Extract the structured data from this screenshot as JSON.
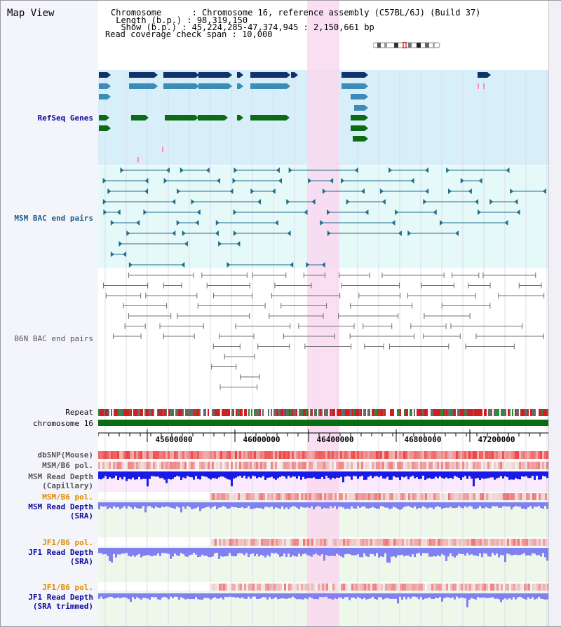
{
  "page_title": "Map View",
  "header": {
    "chromosome_key": "Chromosome      ",
    "chromosome_value": "Chromosome 16, reference assembly (C57BL/6J) (Build 37)",
    "length_key": " Length (b.p.) ",
    "length_value": "98,319,150",
    "show_key": "  Show (b.p.) ",
    "show_value": "45,224,285-47,374,945 : 2,150,661 bp",
    "span_key": "Read coverage check span",
    "span_value": "10,000"
  },
  "tracks": {
    "refseq": "RefSeq Genes",
    "msm_bac": "MSM BAC end pairs",
    "b6n_bac": "B6N BAC end pairs",
    "repeat": "Repeat",
    "chromosome": "chromosome 16",
    "dbsnp": "dbSNP(Mouse)",
    "msm_b6_pol": "MSM/B6 pol.",
    "msm_depth_cap_1": "MSM Read Depth",
    "msm_depth_cap_2": "(Capillary)",
    "msm_b6_pol_2": "MSM/B6 pol.",
    "msm_depth_sra_1": "MSM Read Depth",
    "msm_depth_sra_2": "(SRA)",
    "jf1_b6_pol": "JF1/B6 pol.",
    "jf1_depth_sra_1": "JF1 Read Depth",
    "jf1_depth_sra_2": "(SRA)",
    "jf1_b6_pol_2": "JF1/B6 pol.",
    "jf1_depth_trim_1": "JF1 Read Depth",
    "jf1_depth_trim_2": "(SRA trimmed)"
  },
  "ruler_ticks": [
    "45600000",
    "46000000",
    "46400000",
    "46800000",
    "47200000"
  ],
  "colors": {
    "refseq_bg": "#d8eef9",
    "bac_bg": "#e6f9f9",
    "highlight": "#f9d8f0",
    "gene_dark": "#10336b",
    "gene_mid": "#3b8db8",
    "gene_green": "#0b6b16",
    "msm_bac": "#1f6e8c",
    "b6n_bac": "#707070",
    "depth_dark": "#1a1ae6",
    "depth_light": "#8080f0",
    "pol_red": "#e83b3b",
    "label_blue": "#0a0a9a",
    "label_orange": "#e08a00"
  }
}
